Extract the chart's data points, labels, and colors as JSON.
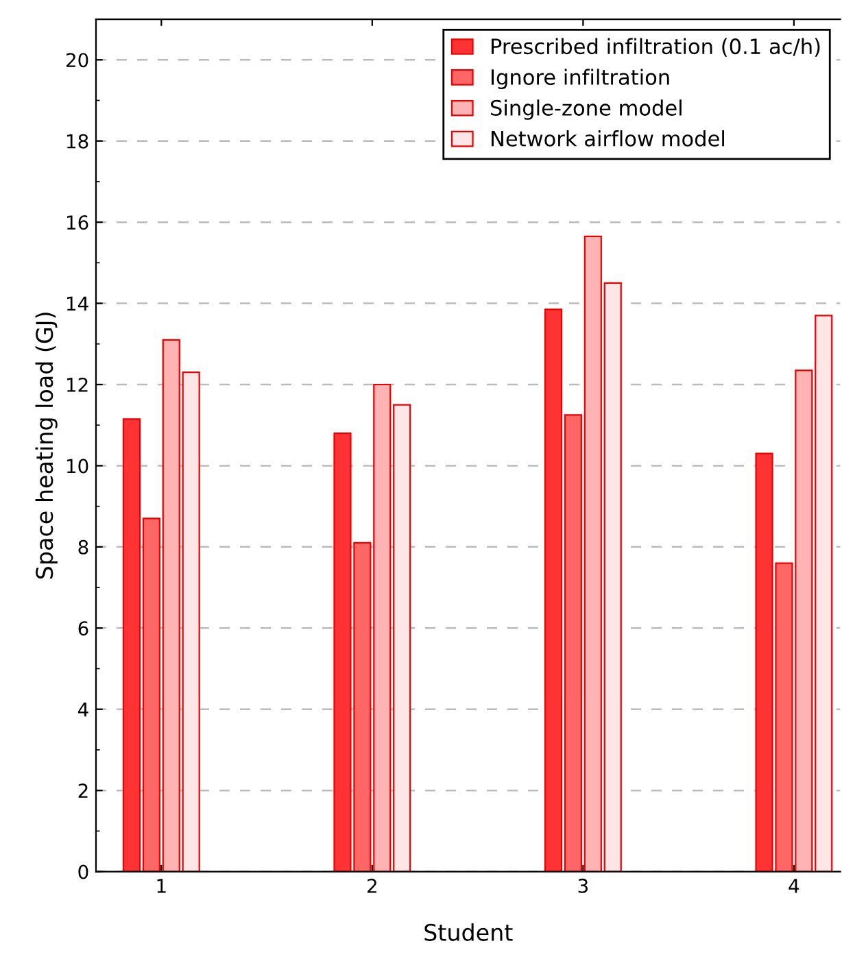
{
  "chart_data": {
    "type": "bar",
    "xlabel": "Student",
    "ylabel": "Space heating load (GJ)",
    "categories": [
      "1",
      "2",
      "3",
      "4"
    ],
    "series": [
      {
        "name": "Prescribed infiltration (0.1 ac/h)",
        "color": "#ff3333",
        "values": [
          11.15,
          10.8,
          13.85,
          10.3
        ]
      },
      {
        "name": "Ignore infiltration",
        "color": "#ff6666",
        "values": [
          8.7,
          8.1,
          11.25,
          7.6
        ]
      },
      {
        "name": "Single-zone model",
        "color": "#ffb3b3",
        "values": [
          13.1,
          12.0,
          15.65,
          12.35
        ]
      },
      {
        "name": "Network airflow model",
        "color": "#ffe6e6",
        "values": [
          12.3,
          11.5,
          14.5,
          13.7
        ]
      }
    ],
    "ylim": [
      0,
      21
    ],
    "yticks": [
      0,
      2,
      4,
      6,
      8,
      10,
      12,
      14,
      16,
      18,
      20
    ],
    "grid": "y",
    "legend": "top right"
  }
}
